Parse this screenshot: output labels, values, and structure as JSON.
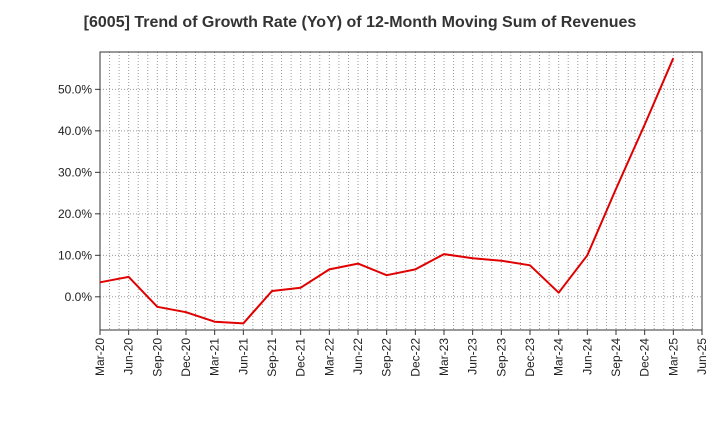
{
  "chart_data": {
    "type": "line",
    "title": "[6005]  Trend of Growth Rate (YoY) of 12-Month Moving Sum of Revenues",
    "xlabel": "",
    "ylabel": "",
    "x_ticks": [
      "Mar-20",
      "Jun-20",
      "Sep-20",
      "Dec-20",
      "Mar-21",
      "Jun-21",
      "Sep-21",
      "Dec-21",
      "Mar-22",
      "Jun-22",
      "Sep-22",
      "Dec-22",
      "Mar-23",
      "Jun-23",
      "Sep-23",
      "Dec-23",
      "Mar-24",
      "Jun-24",
      "Sep-24",
      "Dec-24",
      "Mar-25",
      "Jun-25"
    ],
    "y_ticks": [
      "0.0%",
      "10.0%",
      "20.0%",
      "30.0%",
      "40.0%",
      "50.0%"
    ],
    "y_tick_values": [
      0,
      10,
      20,
      30,
      40,
      50
    ],
    "ylim": [
      -8,
      59
    ],
    "grid": true,
    "series": [
      {
        "color": "#e00000",
        "x": [
          "Mar-20",
          "Jun-20",
          "Sep-20",
          "Dec-20",
          "Mar-21",
          "Jun-21",
          "Sep-21",
          "Dec-21",
          "Mar-22",
          "Jun-22",
          "Sep-22",
          "Dec-22",
          "Mar-23",
          "Jun-23",
          "Sep-23",
          "Dec-23",
          "Mar-24",
          "Jun-24",
          "Sep-24",
          "Dec-24",
          "Mar-25"
        ],
        "values": [
          3.5,
          4.8,
          -2.4,
          -3.7,
          -6.0,
          -6.4,
          1.4,
          2.2,
          6.6,
          8.0,
          5.2,
          6.6,
          10.3,
          9.3,
          8.7,
          7.6,
          1.0,
          10.0,
          26.0,
          41.5,
          57.5
        ]
      }
    ]
  }
}
